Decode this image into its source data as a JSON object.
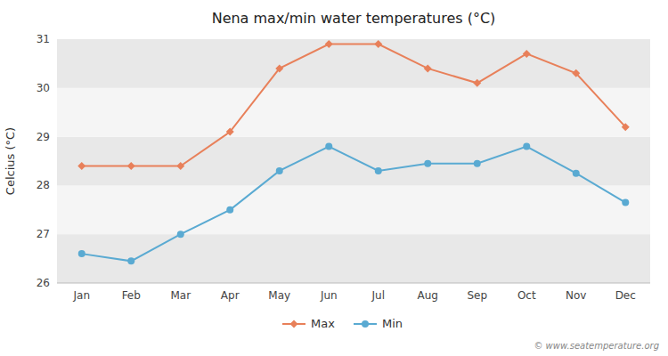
{
  "chart_data": {
    "type": "line",
    "title": "Nena max/min water temperatures (°C)",
    "y_label": "Celcius (°C)",
    "categories": [
      "Jan",
      "Feb",
      "Mar",
      "Apr",
      "May",
      "Jun",
      "Jul",
      "Aug",
      "Sep",
      "Oct",
      "Nov",
      "Dec"
    ],
    "series": [
      {
        "name": "Max",
        "color": "#e8805a",
        "marker": "diamond",
        "values": [
          28.4,
          28.4,
          28.4,
          29.1,
          30.4,
          30.9,
          30.9,
          30.4,
          30.1,
          30.7,
          30.3,
          29.2
        ]
      },
      {
        "name": "Min",
        "color": "#5aaad2",
        "marker": "circle",
        "values": [
          26.6,
          26.45,
          27.0,
          27.5,
          28.3,
          28.8,
          28.3,
          28.45,
          28.45,
          28.8,
          28.25,
          27.65
        ]
      }
    ],
    "ylim": [
      26,
      31
    ],
    "yticks": [
      26,
      27,
      28,
      29,
      30,
      31
    ],
    "grid": true,
    "legend": "bottom",
    "annotations": [
      "© www.seatemperature.org"
    ]
  }
}
